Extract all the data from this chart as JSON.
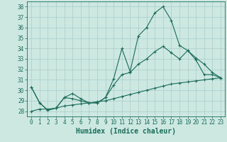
{
  "title": "",
  "xlabel": "Humidex (Indice chaleur)",
  "ylabel": "",
  "bg_color": "#cce8e0",
  "grid_color": "#aacccc",
  "line_color": "#1a6b5a",
  "xlim": [
    -0.5,
    23.5
  ],
  "ylim": [
    27.5,
    38.5
  ],
  "yticks": [
    28,
    29,
    30,
    31,
    32,
    33,
    34,
    35,
    36,
    37,
    38
  ],
  "xticks": [
    0,
    1,
    2,
    3,
    4,
    5,
    6,
    7,
    8,
    9,
    10,
    11,
    12,
    13,
    14,
    15,
    16,
    17,
    18,
    19,
    20,
    21,
    22,
    23
  ],
  "series": [
    [
      30.3,
      28.8,
      28.1,
      28.3,
      29.3,
      29.7,
      29.2,
      28.8,
      28.8,
      29.3,
      31.1,
      34.0,
      31.8,
      35.2,
      36.0,
      37.4,
      38.0,
      36.7,
      34.3,
      33.8,
      32.9,
      31.5,
      31.5,
      31.2
    ],
    [
      30.3,
      28.8,
      28.1,
      28.3,
      29.3,
      29.2,
      29.0,
      28.8,
      28.8,
      29.3,
      30.5,
      31.5,
      31.7,
      32.5,
      33.0,
      33.7,
      34.2,
      33.6,
      33.0,
      33.8,
      33.1,
      32.5,
      31.7,
      31.2
    ],
    [
      28.0,
      28.2,
      28.2,
      28.3,
      28.5,
      28.6,
      28.7,
      28.8,
      28.9,
      29.0,
      29.2,
      29.4,
      29.6,
      29.8,
      30.0,
      30.2,
      30.4,
      30.6,
      30.7,
      30.8,
      30.9,
      31.0,
      31.1,
      31.2
    ]
  ],
  "label_fontsize": 5.5,
  "xlabel_fontsize": 7.0
}
